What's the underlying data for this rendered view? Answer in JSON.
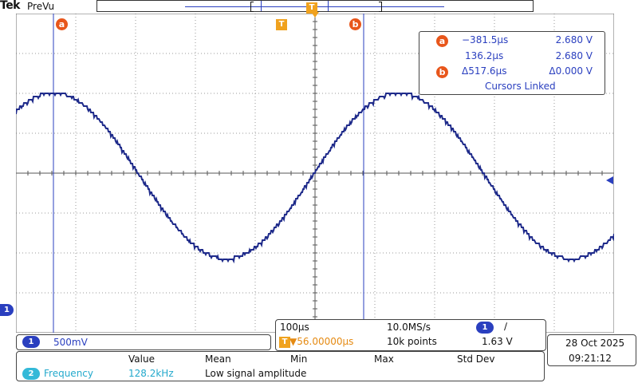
{
  "header": {
    "brand": "Tek",
    "acq_mode": "PreVu"
  },
  "cursors": {
    "a_label": "a",
    "b_label": "b",
    "trigger_label": "T",
    "readout": {
      "a_time": "−381.5µs",
      "a_volt": "2.680 V",
      "b_time": "136.2µs",
      "b_volt": "2.680 V",
      "delta_time": "Δ517.6µs",
      "delta_volt": "Δ0.000 V",
      "status": "Cursors Linked"
    }
  },
  "channel": {
    "number": "1",
    "scale": "500mV",
    "color": "#2a3fbf"
  },
  "horizontal": {
    "timebase": "100µs",
    "sample_rate": "10.0MS/s",
    "trigger_position": "▼56.00000µs",
    "record_length": "10k points",
    "trigger_channel": "1",
    "trigger_slope": "∕",
    "trigger_level": "1.63 V"
  },
  "measurement": {
    "headers": [
      "Value",
      "Mean",
      "Min",
      "Max",
      "Std Dev"
    ],
    "channel": "2",
    "name": "Frequency",
    "value": "128.2kHz",
    "note": "Low signal amplitude"
  },
  "clock": {
    "date": "28 Oct  2025",
    "time": "09:21:12"
  }
}
